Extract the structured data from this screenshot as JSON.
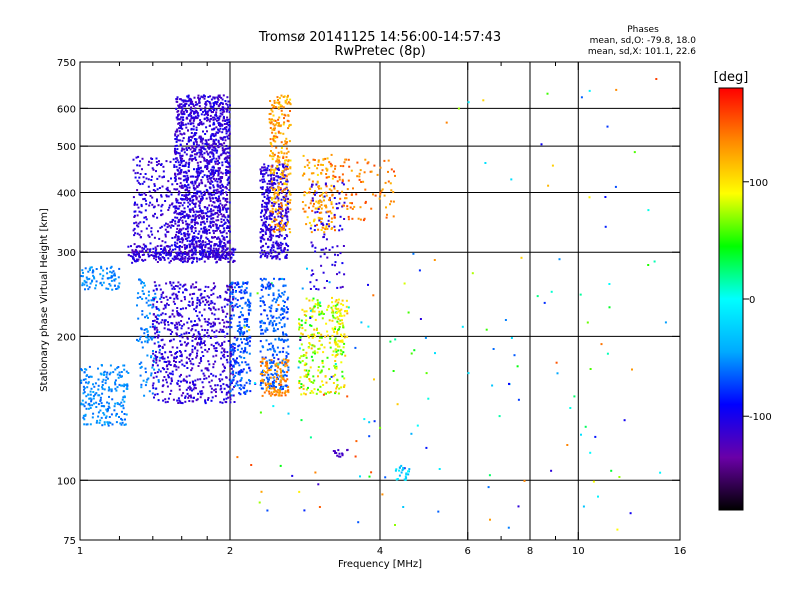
{
  "chart_data": {
    "type": "scatter",
    "title": "Tromsø 20141125 14:56:00-14:57:43",
    "subtitle": "RwPretec (8p)",
    "xlabel": "Frequency [MHz]",
    "ylabel": "Stationary phase Virtual Height [km]",
    "xscale": "log",
    "yscale": "log",
    "xlim": [
      1,
      16
    ],
    "ylim": [
      75,
      750
    ],
    "xticks": [
      1,
      2,
      4,
      6,
      8,
      10,
      16
    ],
    "xtick_labels": [
      "1",
      "2",
      "4",
      "6",
      "8",
      "10",
      "16"
    ],
    "xminor": [
      1.2,
      1.4,
      1.6,
      1.8,
      7,
      9
    ],
    "ytick_labels": [
      "75",
      "100",
      "200",
      "300",
      "400",
      "500",
      "600",
      "750"
    ],
    "yticks": [
      75,
      100,
      200,
      300,
      400,
      500,
      600,
      750
    ],
    "grid": true,
    "legend": {
      "title": "Phases",
      "lines": [
        "mean, sd,O: -79.8, 18.0",
        "mean, sd,X: 101.1, 22.6"
      ],
      "placement": "top-right"
    },
    "colorbar": {
      "label": "[deg]",
      "range": [
        -180,
        180
      ],
      "ticks": [
        -100,
        0,
        100
      ],
      "tick_labels": [
        "-100",
        "0",
        "100"
      ],
      "colors": [
        "#000000",
        "#6a00a8",
        "#0000ff",
        "#00aaff",
        "#00ffff",
        "#00ff00",
        "#ffff00",
        "#ff8800",
        "#ff0000"
      ]
    },
    "clusters": [
      {
        "name": "",
        "fmin": 1.55,
        "fmax": 2.0,
        "hmin": 290,
        "hmax": 640,
        "pmin": -125,
        "pmax": -95,
        "n": 1500
      },
      {
        "name": "",
        "fmin": 1.28,
        "fmax": 1.55,
        "hmin": 290,
        "hmax": 480,
        "pmin": -125,
        "pmax": -95,
        "n": 220
      },
      {
        "name": "",
        "fmin": 1.25,
        "fmax": 2.05,
        "hmin": 285,
        "hmax": 310,
        "pmin": -125,
        "pmax": -95,
        "n": 220
      },
      {
        "name": "",
        "fmin": 2.3,
        "fmax": 2.62,
        "hmin": 290,
        "hmax": 460,
        "pmin": -120,
        "pmax": -95,
        "n": 380
      },
      {
        "name": "",
        "fmin": 2.4,
        "fmax": 2.65,
        "hmin": 330,
        "hmax": 640,
        "pmin": 100,
        "pmax": 150,
        "n": 260
      },
      {
        "name": "",
        "fmin": 2.8,
        "fmax": 3.25,
        "hmin": 330,
        "hmax": 480,
        "pmin": 100,
        "pmax": 150,
        "n": 120
      },
      {
        "name": "",
        "fmin": 2.9,
        "fmax": 3.4,
        "hmin": 250,
        "hmax": 420,
        "pmin": -120,
        "pmax": -95,
        "n": 90
      },
      {
        "name": "",
        "fmin": 3.0,
        "fmax": 4.3,
        "hmin": 350,
        "hmax": 470,
        "pmin": 120,
        "pmax": 160,
        "n": 120
      },
      {
        "name": "",
        "fmin": 1.0,
        "fmax": 1.2,
        "hmin": 250,
        "hmax": 280,
        "pmin": -65,
        "pmax": -45,
        "n": 90
      },
      {
        "name": "",
        "fmin": 1.0,
        "fmax": 1.25,
        "hmin": 130,
        "hmax": 175,
        "pmin": -65,
        "pmax": -45,
        "n": 220
      },
      {
        "name": "",
        "fmin": 1.3,
        "fmax": 1.45,
        "hmin": 150,
        "hmax": 265,
        "pmin": -65,
        "pmax": -45,
        "n": 110
      },
      {
        "name": "",
        "fmin": 1.4,
        "fmax": 2.05,
        "hmin": 145,
        "hmax": 260,
        "pmin": -125,
        "pmax": -95,
        "n": 700
      },
      {
        "name": "",
        "fmin": 2.0,
        "fmax": 2.2,
        "hmin": 150,
        "hmax": 260,
        "pmin": -85,
        "pmax": -55,
        "n": 220
      },
      {
        "name": "",
        "fmin": 2.3,
        "fmax": 2.62,
        "hmin": 155,
        "hmax": 265,
        "pmin": -80,
        "pmax": -55,
        "n": 260
      },
      {
        "name": "",
        "fmin": 2.3,
        "fmax": 2.62,
        "hmin": 150,
        "hmax": 180,
        "pmin": 120,
        "pmax": 150,
        "n": 110
      },
      {
        "name": "",
        "fmin": 2.75,
        "fmax": 3.4,
        "hmin": 150,
        "hmax": 240,
        "pmin": 40,
        "pmax": 120,
        "n": 260
      },
      {
        "name": "",
        "fmin": 3.2,
        "fmax": 3.45,
        "hmin": 180,
        "hmax": 245,
        "pmin": 85,
        "pmax": 115,
        "n": 50
      },
      {
        "name": "",
        "fmin": 2.05,
        "fmax": 5.0,
        "hmin": 80,
        "hmax": 300,
        "pmin": -120,
        "pmax": 160,
        "n": 90
      },
      {
        "name": "",
        "fmin": 4.3,
        "fmax": 4.6,
        "hmin": 100,
        "hmax": 108,
        "pmin": -40,
        "pmax": 0,
        "n": 25
      },
      {
        "name": "",
        "fmin": 3.2,
        "fmax": 3.45,
        "hmin": 112,
        "hmax": 116,
        "pmin": -125,
        "pmax": -110,
        "n": 14
      },
      {
        "name": "",
        "fmin": 5.0,
        "fmax": 15.0,
        "hmin": 76,
        "hmax": 700,
        "pmin": -120,
        "pmax": 160,
        "n": 80
      }
    ]
  }
}
